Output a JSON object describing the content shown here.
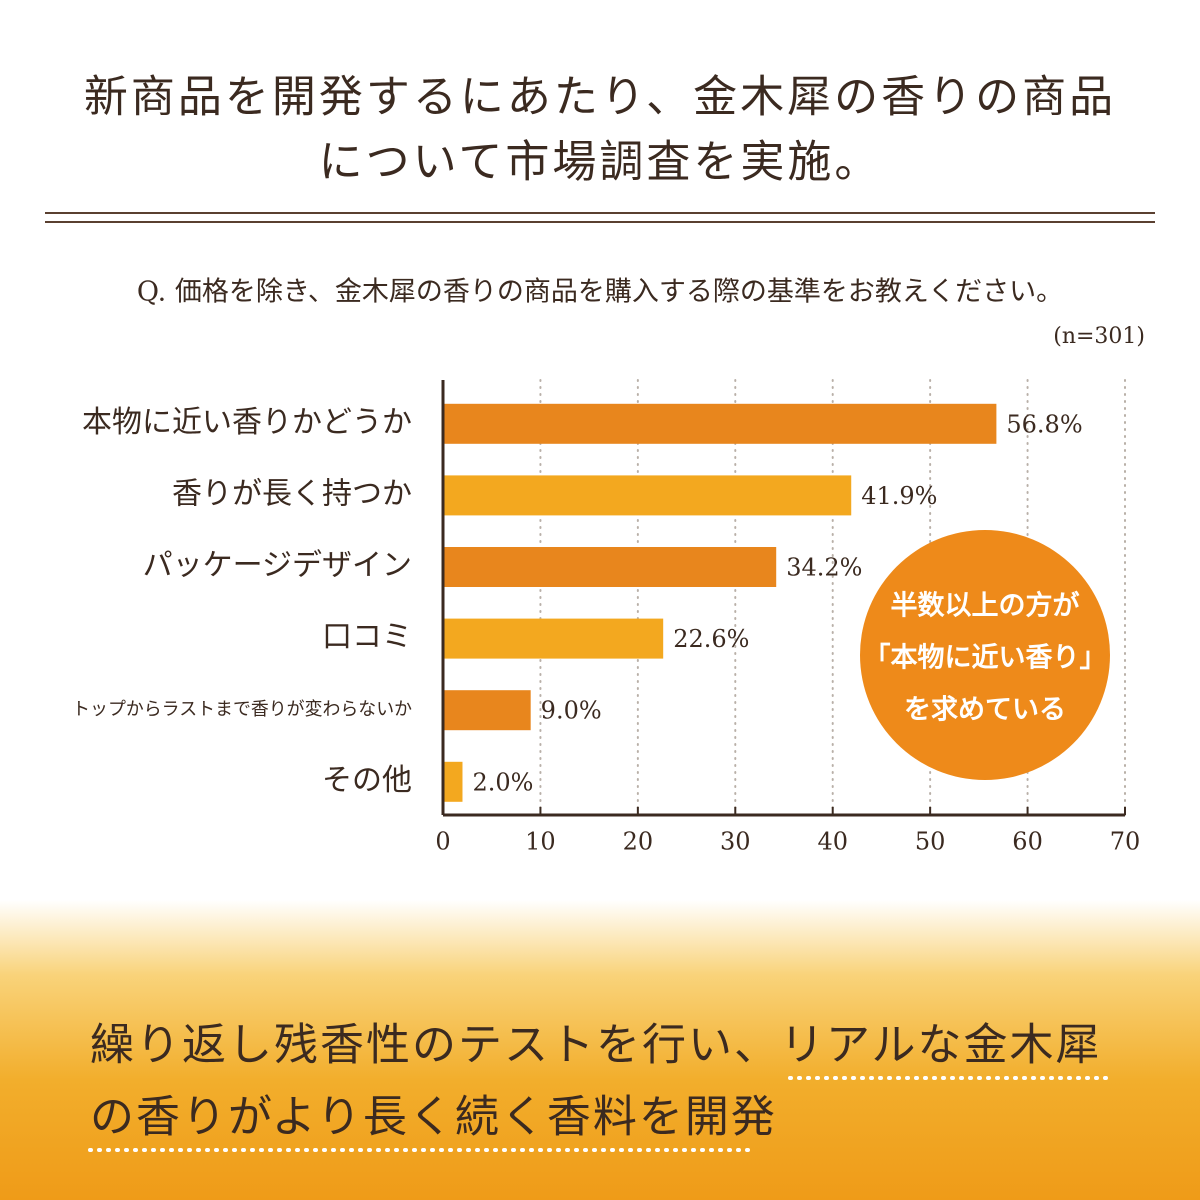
{
  "header": {
    "title_lines": [
      "新商品を開発するにあたり、金木犀の香りの商品",
      "について市場調査を実施。"
    ]
  },
  "chart_data": {
    "type": "bar",
    "orientation": "horizontal",
    "title": "Q. 価格を除き、金木犀の香りの商品を購入する際の基準をお教えください。",
    "subtitle": "(n=301)",
    "categories": [
      "本物に近い香りかどうか",
      "香りが長く持つか",
      "パッケージデザイン",
      "口コミ",
      "トップからラストまで香りが変わらないか",
      "その他"
    ],
    "values": [
      56.8,
      41.9,
      34.2,
      22.6,
      9.0,
      2.0
    ],
    "value_labels": [
      "56.8%",
      "41.9%",
      "34.2%",
      "22.6%",
      "9.0%",
      "2.0%"
    ],
    "colors": [
      "#e8861d",
      "#f3a81f",
      "#e8861d",
      "#f3a81f",
      "#e8861d",
      "#f3a81f"
    ],
    "xlim": [
      0,
      70
    ],
    "xticks": [
      0,
      10,
      20,
      30,
      40,
      50,
      60,
      70
    ],
    "grid": true,
    "annotation_lines": [
      "半数以上の方が",
      "「本物に近い香り」",
      "を求めている"
    ]
  },
  "footer": {
    "lines": [
      "繰り返し残香性のテストを行い、リアルな金木犀",
      "の香りがより長く続く香料を開発"
    ]
  }
}
